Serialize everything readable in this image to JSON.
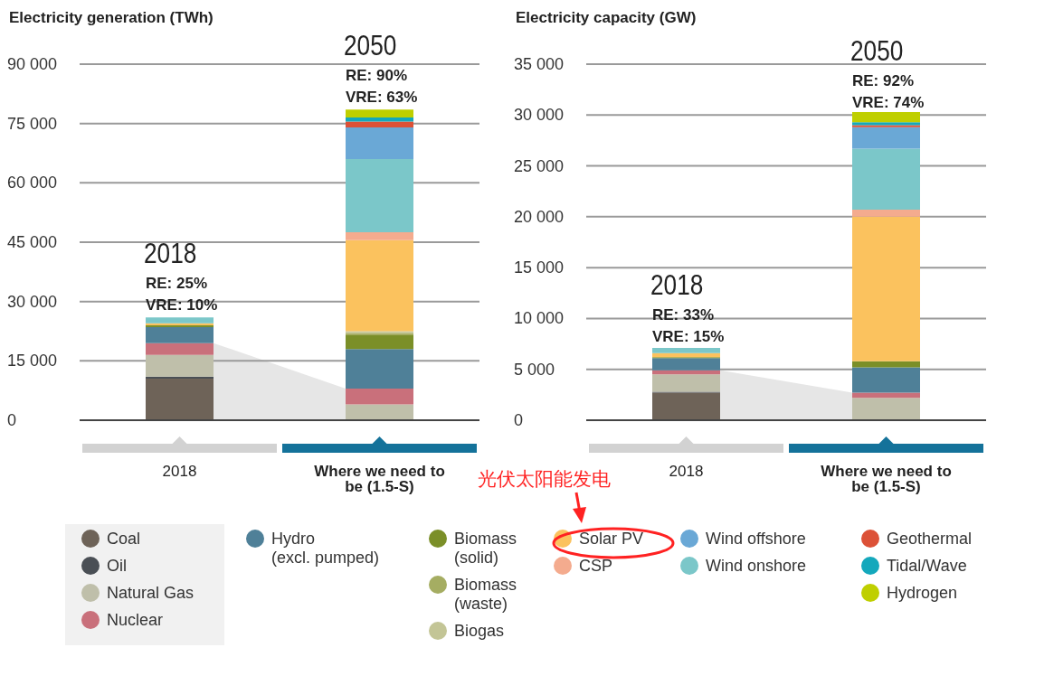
{
  "chart_data": [
    {
      "type": "bar",
      "title": "Electricity generation (TWh)",
      "stacked": true,
      "categories": [
        "2018",
        "Where we need to be (1.5-S)"
      ],
      "series": [
        {
          "name": "Coal",
          "color": "#6e6358",
          "values": [
            10500,
            0
          ]
        },
        {
          "name": "Oil",
          "color": "#4a4f55",
          "values": [
            500,
            0
          ]
        },
        {
          "name": "Natural Gas",
          "color": "#bfbfaa",
          "values": [
            5500,
            4000
          ]
        },
        {
          "name": "Nuclear",
          "color": "#c9707b",
          "values": [
            3000,
            4000
          ]
        },
        {
          "name": "Hydro (excl. pumped)",
          "color": "#4f8098",
          "values": [
            4000,
            10000
          ]
        },
        {
          "name": "Biomass (solid)",
          "color": "#7b8f28",
          "values": [
            500,
            3500
          ]
        },
        {
          "name": "Biomass (waste)",
          "color": "#a5ad62",
          "values": [
            0,
            500
          ]
        },
        {
          "name": "Biogas",
          "color": "#c3c596",
          "values": [
            0,
            500
          ]
        },
        {
          "name": "Solar PV",
          "color": "#fbc25e",
          "values": [
            500,
            23000
          ]
        },
        {
          "name": "CSP",
          "color": "#f4ab8e",
          "values": [
            0,
            2000
          ]
        },
        {
          "name": "Wind onshore",
          "color": "#7bc7c9",
          "values": [
            1500,
            18500
          ]
        },
        {
          "name": "Wind offshore",
          "color": "#6aa8d6",
          "values": [
            0,
            8000
          ]
        },
        {
          "name": "Geothermal",
          "color": "#dc5137",
          "values": [
            0,
            1500
          ]
        },
        {
          "name": "Tidal/Wave",
          "color": "#14a8bc",
          "values": [
            0,
            1000
          ]
        },
        {
          "name": "Hydrogen",
          "color": "#bfcf00",
          "values": [
            0,
            2000
          ]
        }
      ],
      "ylim": [
        0,
        90000
      ],
      "yticks": [
        0,
        {
          "value": 15000,
          "label": "15 000"
        },
        {
          "value": 30000,
          "label": "30 000"
        },
        {
          "value": 45000,
          "label": "45 000"
        },
        {
          "value": 60000,
          "label": "60 000"
        },
        {
          "value": 75000,
          "label": "75 000"
        },
        {
          "value": 90000,
          "label": "90 000"
        }
      ],
      "grid": "y",
      "legend": "bottom",
      "annotations": [
        {
          "text": "2018\nRE: 25%\nVRE: 10%",
          "x": "2018",
          "y": 26500
        },
        {
          "text": "2050\nRE: 90%\nVRE: 63%",
          "x": "Where we need to be (1.5-S)",
          "y": 79000
        }
      ]
    },
    {
      "type": "bar",
      "title": "Electricity capacity (GW)",
      "stacked": true,
      "categories": [
        "2018",
        "Where we need to be (1.5-S)"
      ],
      "series": [
        {
          "color": "#6e6358",
          "values": [
            2700,
            0
          ]
        },
        {
          "color": "#4a4f55",
          "values": [
            100,
            0
          ]
        },
        {
          "color": "#bfbfaa",
          "values": [
            1700,
            2200
          ]
        },
        {
          "color": "#c9707b",
          "values": [
            400,
            500
          ]
        },
        {
          "color": "#4f8098",
          "values": [
            1200,
            2500
          ]
        },
        {
          "color": "#7b8f28",
          "values": [
            100,
            600
          ]
        },
        {
          "color": "#a5ad62",
          "values": [
            0,
            0
          ]
        },
        {
          "color": "#c3c596",
          "values": [
            0,
            0
          ]
        },
        {
          "color": "#fbc25e",
          "values": [
            400,
            14200
          ]
        },
        {
          "color": "#f4ab8e",
          "values": [
            0,
            700
          ]
        },
        {
          "color": "#7bc7c9",
          "values": [
            500,
            6000
          ]
        },
        {
          "color": "#6aa8d6",
          "values": [
            0,
            2100
          ]
        },
        {
          "color": "#dc5137",
          "values": [
            0,
            200
          ]
        },
        {
          "color": "#14a8bc",
          "values": [
            0,
            300
          ]
        },
        {
          "color": "#bfcf00",
          "values": [
            0,
            1000
          ]
        }
      ],
      "ylim": [
        0,
        35000
      ],
      "yticks": [
        0,
        {
          "value": 5000,
          "label": "5 000"
        },
        {
          "value": 10000,
          "label": "10 000"
        },
        {
          "value": 15000,
          "label": "15 000"
        },
        {
          "value": 20000,
          "label": "20 000"
        },
        {
          "value": 25000,
          "label": "25 000"
        },
        {
          "value": 30000,
          "label": "30 000"
        },
        {
          "value": 35000,
          "label": "35 000"
        }
      ],
      "grid": "y",
      "annotations": [
        {
          "text": "2018\nRE: 33%\nVRE: 15%",
          "x": "2018",
          "y": 7200
        },
        {
          "text": "2050\nRE: 92%\nVRE: 74%",
          "x": "Where we need to be (1.5-S)",
          "y": 30200
        },
        "光伏太阳能发电"
      ]
    }
  ]
}
